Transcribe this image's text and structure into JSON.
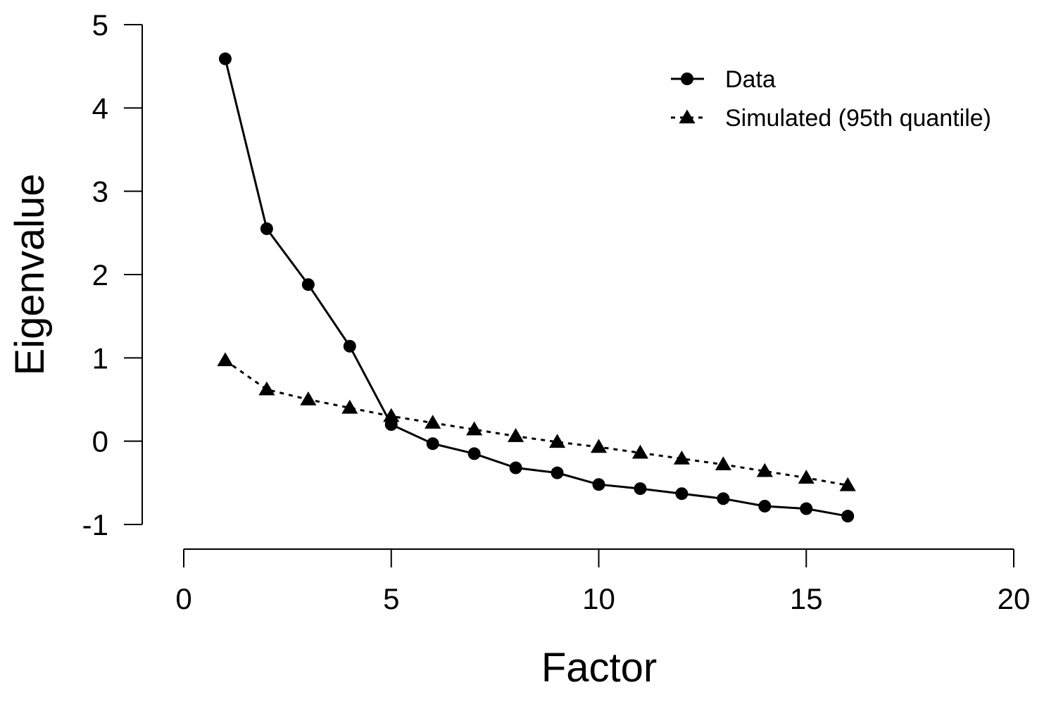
{
  "chart_data": {
    "type": "line",
    "title": "",
    "xlabel": "Factor",
    "ylabel": "Eigenvalue",
    "xlim": [
      0,
      20
    ],
    "ylim": [
      -1,
      5
    ],
    "x_ticks": [
      "0",
      "5",
      "10",
      "15",
      "20"
    ],
    "y_ticks": [
      "-1",
      "0",
      "1",
      "2",
      "3",
      "4",
      "5"
    ],
    "grid": false,
    "legend_position": "top-right",
    "x": [
      1,
      2,
      3,
      4,
      5,
      6,
      7,
      8,
      9,
      10,
      11,
      12,
      13,
      14,
      15,
      16
    ],
    "series": [
      {
        "name": "Data",
        "marker": "circle",
        "line_style": "solid",
        "color": "#000000",
        "values": [
          4.59,
          2.55,
          1.88,
          1.14,
          0.2,
          -0.03,
          -0.15,
          -0.32,
          -0.38,
          -0.52,
          -0.57,
          -0.63,
          -0.69,
          -0.78,
          -0.81,
          -0.9
        ]
      },
      {
        "name": "Simulated (95th quantile)",
        "marker": "triangle",
        "line_style": "dotted",
        "color": "#000000",
        "values": [
          0.97,
          0.62,
          0.5,
          0.4,
          0.3,
          0.22,
          0.14,
          0.06,
          -0.01,
          -0.07,
          -0.14,
          -0.21,
          -0.28,
          -0.36,
          -0.44,
          -0.53
        ]
      }
    ]
  }
}
